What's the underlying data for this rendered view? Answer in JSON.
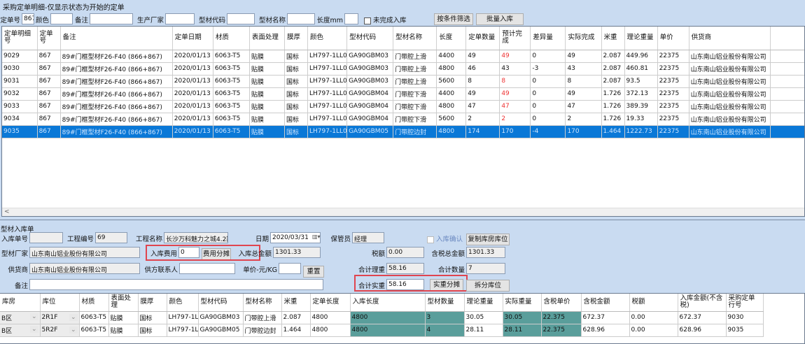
{
  "title": "采购定单明细-仅显示状态为开始的定单",
  "filters": {
    "order_no_label": "定单号",
    "order_no": "867",
    "color_label": "颜色",
    "color": "",
    "remark_label": "备注",
    "remark": "",
    "maker_label": "生产厂家",
    "maker": "",
    "code_label": "型材代码",
    "code": "",
    "name_label": "型材名称",
    "name": "",
    "length_label": "长度mm",
    "length": "",
    "incomplete_label": "未完成入库",
    "filter_btn": "按条件筛选",
    "batch_btn": "批量入库"
  },
  "orders": {
    "columns": [
      "定单明细号",
      "定单号",
      "备注",
      "定单日期",
      "材质",
      "表面处理",
      "膜厚",
      "颜色",
      "型材代码",
      "型材名称",
      "长度",
      "定单数量",
      "预计完成",
      "差异量",
      "实际完成",
      "米重",
      "理论重量",
      "单价",
      "供货商",
      ""
    ],
    "rows": [
      [
        "9029",
        "867",
        "89#门框型材F26-F40 (866+867)",
        "2020/01/13",
        "6063-T5",
        "贴膜",
        "国标",
        "LH797-1LL0",
        "GA90GBM03",
        "门带腔上滑",
        "4400",
        "49",
        "49",
        "0",
        "49",
        "2.087",
        "449.96",
        "22375",
        "山东南山铝业股份有限公司"
      ],
      [
        "9030",
        "867",
        "89#门框型材F26-F40 (866+867)",
        "2020/01/13",
        "6063-T5",
        "贴膜",
        "国标",
        "LH797-1LL0",
        "GA90GBM03",
        "门带腔上滑",
        "4800",
        "46",
        "43",
        "-3",
        "43",
        "2.087",
        "460.81",
        "22375",
        "山东南山铝业股份有限公司"
      ],
      [
        "9031",
        "867",
        "89#门框型材F26-F40 (866+867)",
        "2020/01/13",
        "6063-T5",
        "贴膜",
        "国标",
        "LH797-1LL0",
        "GA90GBM03",
        "门带腔上滑",
        "5600",
        "8",
        "8",
        "0",
        "8",
        "2.087",
        "93.5",
        "22375",
        "山东南山铝业股份有限公司"
      ],
      [
        "9032",
        "867",
        "89#门框型材F26-F40 (866+867)",
        "2020/01/13",
        "6063-T5",
        "贴膜",
        "国标",
        "LH797-1LL0",
        "GA90GBM04",
        "门带腔下滑",
        "4400",
        "49",
        "49",
        "0",
        "49",
        "1.726",
        "372.13",
        "22375",
        "山东南山铝业股份有限公司"
      ],
      [
        "9033",
        "867",
        "89#门框型材F26-F40 (866+867)",
        "2020/01/13",
        "6063-T5",
        "贴膜",
        "国标",
        "LH797-1LL0",
        "GA90GBM04",
        "门带腔下滑",
        "4800",
        "47",
        "47",
        "0",
        "47",
        "1.726",
        "389.39",
        "22375",
        "山东南山铝业股份有限公司"
      ],
      [
        "9034",
        "867",
        "89#门框型材F26-F40 (866+867)",
        "2020/01/13",
        "6063-T5",
        "贴膜",
        "国标",
        "LH797-1LL0",
        "GA90GBM04",
        "门带腔下滑",
        "5600",
        "2",
        "2",
        "0",
        "2",
        "1.726",
        "19.33",
        "22375",
        "山东南山铝业股份有限公司"
      ],
      [
        "9035",
        "867",
        "89#门框型材F26-F40 (866+867)",
        "2020/01/13",
        "6063-T5",
        "贴膜",
        "国标",
        "LH797-1LL0",
        "GA90GBM05",
        "门带腔边封",
        "4800",
        "174",
        "170",
        "-4",
        "170",
        "1.464",
        "1222.73",
        "22375",
        "山东南山铝业股份有限公司"
      ]
    ],
    "selected_row": 6,
    "red_rows": [
      0,
      2,
      3,
      4,
      5
    ]
  },
  "form": {
    "section": "型材入库单",
    "receipt_no_label": "入库单号",
    "receipt_no": "",
    "project_no_label": "工程编号",
    "project_no": "69",
    "project_name_label": "工程名称",
    "project_name": "长沙万科魅力之城4.2期",
    "date_label": "日期",
    "date": "2020/03/31",
    "keeper_label": "保管员",
    "keeper": "经理",
    "confirm_label": "入库确认",
    "copy_btn": "复制库房库位",
    "maker_label": "型材厂家",
    "maker": "山东南山铝业股份有限公司",
    "fee_label": "入库费用",
    "fee": "0",
    "fee_btn": "费用分摊",
    "total_label": "入库总金额",
    "total": "1301.33",
    "tax_label": "税额",
    "tax": "0.00",
    "total_tax_label": "含税总金额",
    "total_tax": "1301.33",
    "supplier_label": "供货商",
    "supplier": "山东南山铝业股份有限公司",
    "contact_label": "供方联系人",
    "contact": "",
    "price_label": "单价-元/KG",
    "price": "",
    "reset_btn": "重置",
    "theo_label": "合计理重",
    "theo": "58.16",
    "qty_label": "合计数量",
    "qty": "7",
    "remark_label": "备注",
    "remark": "",
    "actual_label": "合计实重",
    "actual": "58.16",
    "actual_btn": "实重分摊",
    "split_btn": "拆分库位"
  },
  "receipt": {
    "columns": [
      "库房",
      "库位",
      "材质",
      "表面处理",
      "膜厚",
      "颜色",
      "型材代码",
      "型材名称",
      "米重",
      "定单长度",
      "入库长度",
      "型材数量",
      "理论重量",
      "实际重量",
      "含税单价",
      "含税金额",
      "税额",
      "入库金额(不含税)",
      "采购定单行号"
    ],
    "rows": [
      [
        "B区",
        "2R1F",
        "6063-T5",
        "贴膜",
        "国标",
        "LH797-1LL0",
        "GA90GBM03",
        "门带腔上滑",
        "2.087",
        "4800",
        "4800",
        "3",
        "30.05",
        "30.05",
        "22.375",
        "672.37",
        "0.00",
        "672.37",
        "9030"
      ],
      [
        "B区",
        "5R2F",
        "6063-T5",
        "贴膜",
        "国标",
        "LH797-1LL0",
        "GA90GBM05",
        "门带腔边封",
        "1.464",
        "4800",
        "4800",
        "4",
        "28.11",
        "28.11",
        "22.375",
        "628.96",
        "0.00",
        "628.96",
        "9035"
      ]
    ]
  },
  "colors": {
    "selected": "#0a78d7",
    "editable_cell": "#5a9e9b",
    "highlight_box": "#e0454f",
    "warn_text": "#e33333"
  }
}
